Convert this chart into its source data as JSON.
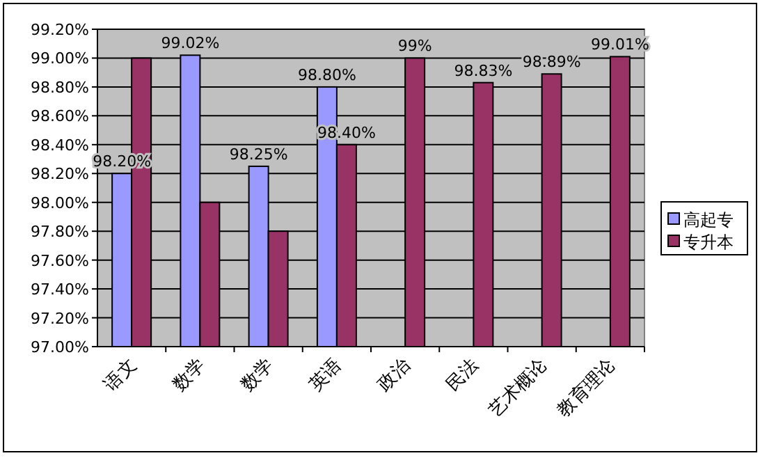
{
  "chart_data": {
    "type": "bar",
    "categories": [
      "语文",
      "数学",
      "数学",
      "英语",
      "政治",
      "民法",
      "艺术概论",
      "教育理论"
    ],
    "series": [
      {
        "name": "高起专",
        "color": "#9999ff",
        "values": [
          98.2,
          99.02,
          98.25,
          98.8,
          null,
          null,
          null,
          null
        ],
        "value_labels": [
          "98.20%",
          "99.02%",
          "98.25%",
          "98.80%",
          null,
          null,
          null,
          null
        ]
      },
      {
        "name": "专升本",
        "color": "#993366",
        "values": [
          99.0,
          98.0,
          97.8,
          98.4,
          99.0,
          98.83,
          98.89,
          99.01
        ],
        "value_labels": [
          null,
          null,
          null,
          "98.40%",
          "99%",
          "98.83%",
          "98.89%",
          "99.01%"
        ]
      }
    ],
    "ylim": [
      97.0,
      99.2
    ],
    "yticks": [
      {
        "value": 97.0,
        "label": "97.00%"
      },
      {
        "value": 97.2,
        "label": "97.20%"
      },
      {
        "value": 97.4,
        "label": "97.40%"
      },
      {
        "value": 97.6,
        "label": "97.60%"
      },
      {
        "value": 97.8,
        "label": "97.80%"
      },
      {
        "value": 98.0,
        "label": "98.00%"
      },
      {
        "value": 98.2,
        "label": "98.20%"
      },
      {
        "value": 98.4,
        "label": "98.40%"
      },
      {
        "value": 98.6,
        "label": "98.60%"
      },
      {
        "value": 98.8,
        "label": "98.80%"
      },
      {
        "value": 99.0,
        "label": "99.00%"
      },
      {
        "value": 99.2,
        "label": "99.20%"
      }
    ],
    "grid": "y",
    "legend": "right"
  }
}
